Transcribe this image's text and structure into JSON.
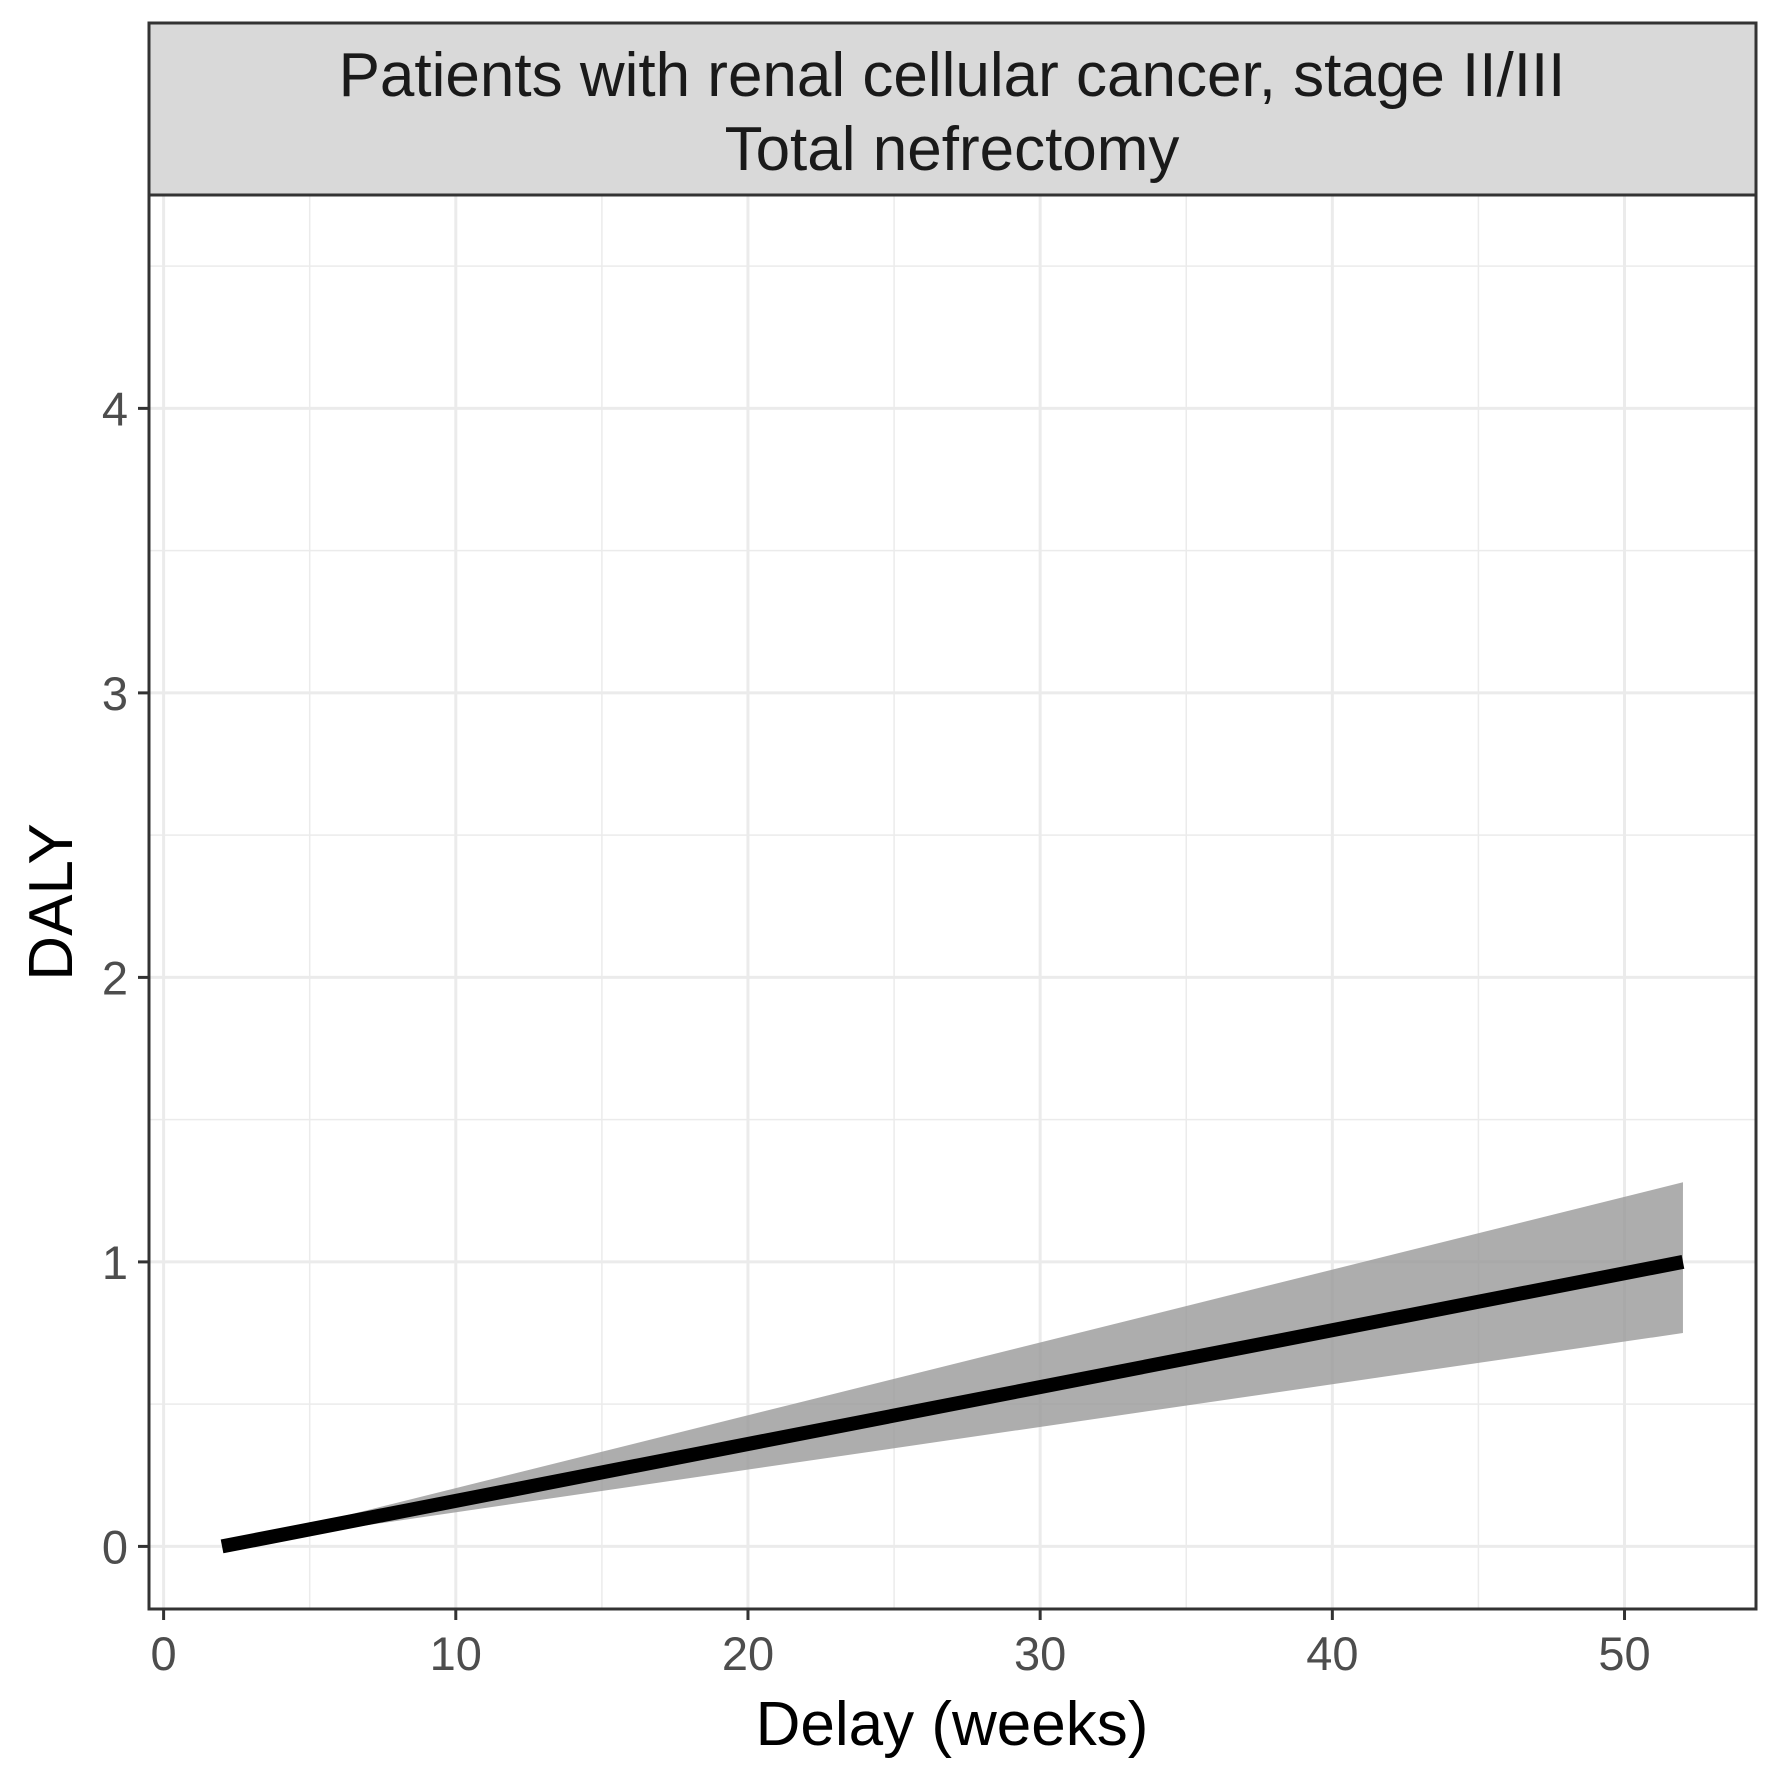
{
  "chart_data": {
    "type": "line",
    "facet_title_line1": "Patients with renal cellular cancer, stage II/III",
    "facet_title_line2": "Total nefrectomy",
    "xlabel": "Delay (weeks)",
    "ylabel": "DALY",
    "xlim": [
      -0.5,
      54.5
    ],
    "ylim": [
      -0.22,
      4.75
    ],
    "x_ticks": [
      0,
      10,
      20,
      30,
      40,
      50
    ],
    "y_ticks": [
      0,
      1,
      2,
      3,
      4
    ],
    "x_minor_ticks": [
      5,
      15,
      25,
      35,
      45
    ],
    "y_minor_ticks": [
      0.5,
      1.5,
      2.5,
      3.5,
      4.5
    ],
    "grid": true,
    "series": [
      {
        "x": [
          2,
          52
        ],
        "values": [
          0,
          1.0
        ],
        "lower": [
          0,
          0.75
        ],
        "upper": [
          0,
          1.28
        ]
      }
    ],
    "colors": {
      "line": "#000000",
      "ribbon": "#999999",
      "strip_fill": "#d9d9d9",
      "grid": "#ebebeb",
      "panel_border": "#333333"
    }
  }
}
